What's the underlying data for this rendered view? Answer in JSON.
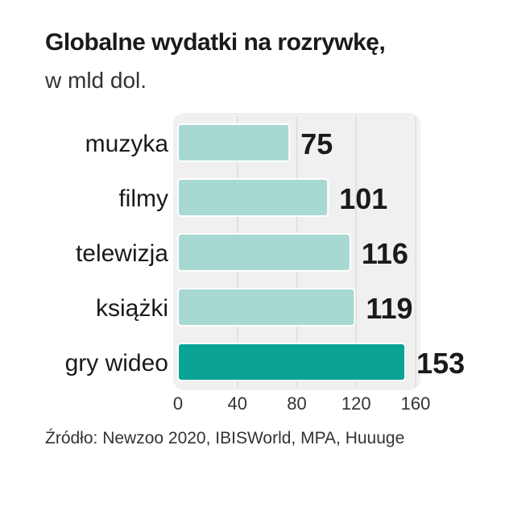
{
  "header": {
    "title": "Globalne wydatki na rozrywkę,",
    "subtitle": "w mld dol."
  },
  "source": "Źródło: Newzoo 2020, IBISWorld, MPA, Huuuge",
  "colors": {
    "bar": "#a8d8d2",
    "bar_highlight": "#0aa396",
    "panel": "#f0f0f0",
    "grid": "#dcdcdc",
    "text": "#1a1a1a"
  },
  "chart_data": {
    "type": "bar",
    "orientation": "horizontal",
    "categories": [
      "muzyka",
      "filmy",
      "telewizja",
      "książki",
      "gry wideo"
    ],
    "values": [
      75,
      101,
      116,
      119,
      153
    ],
    "highlight_index": 4,
    "xlim": [
      0,
      160
    ],
    "xticks": [
      0,
      40,
      80,
      120,
      160
    ],
    "grid": true
  }
}
